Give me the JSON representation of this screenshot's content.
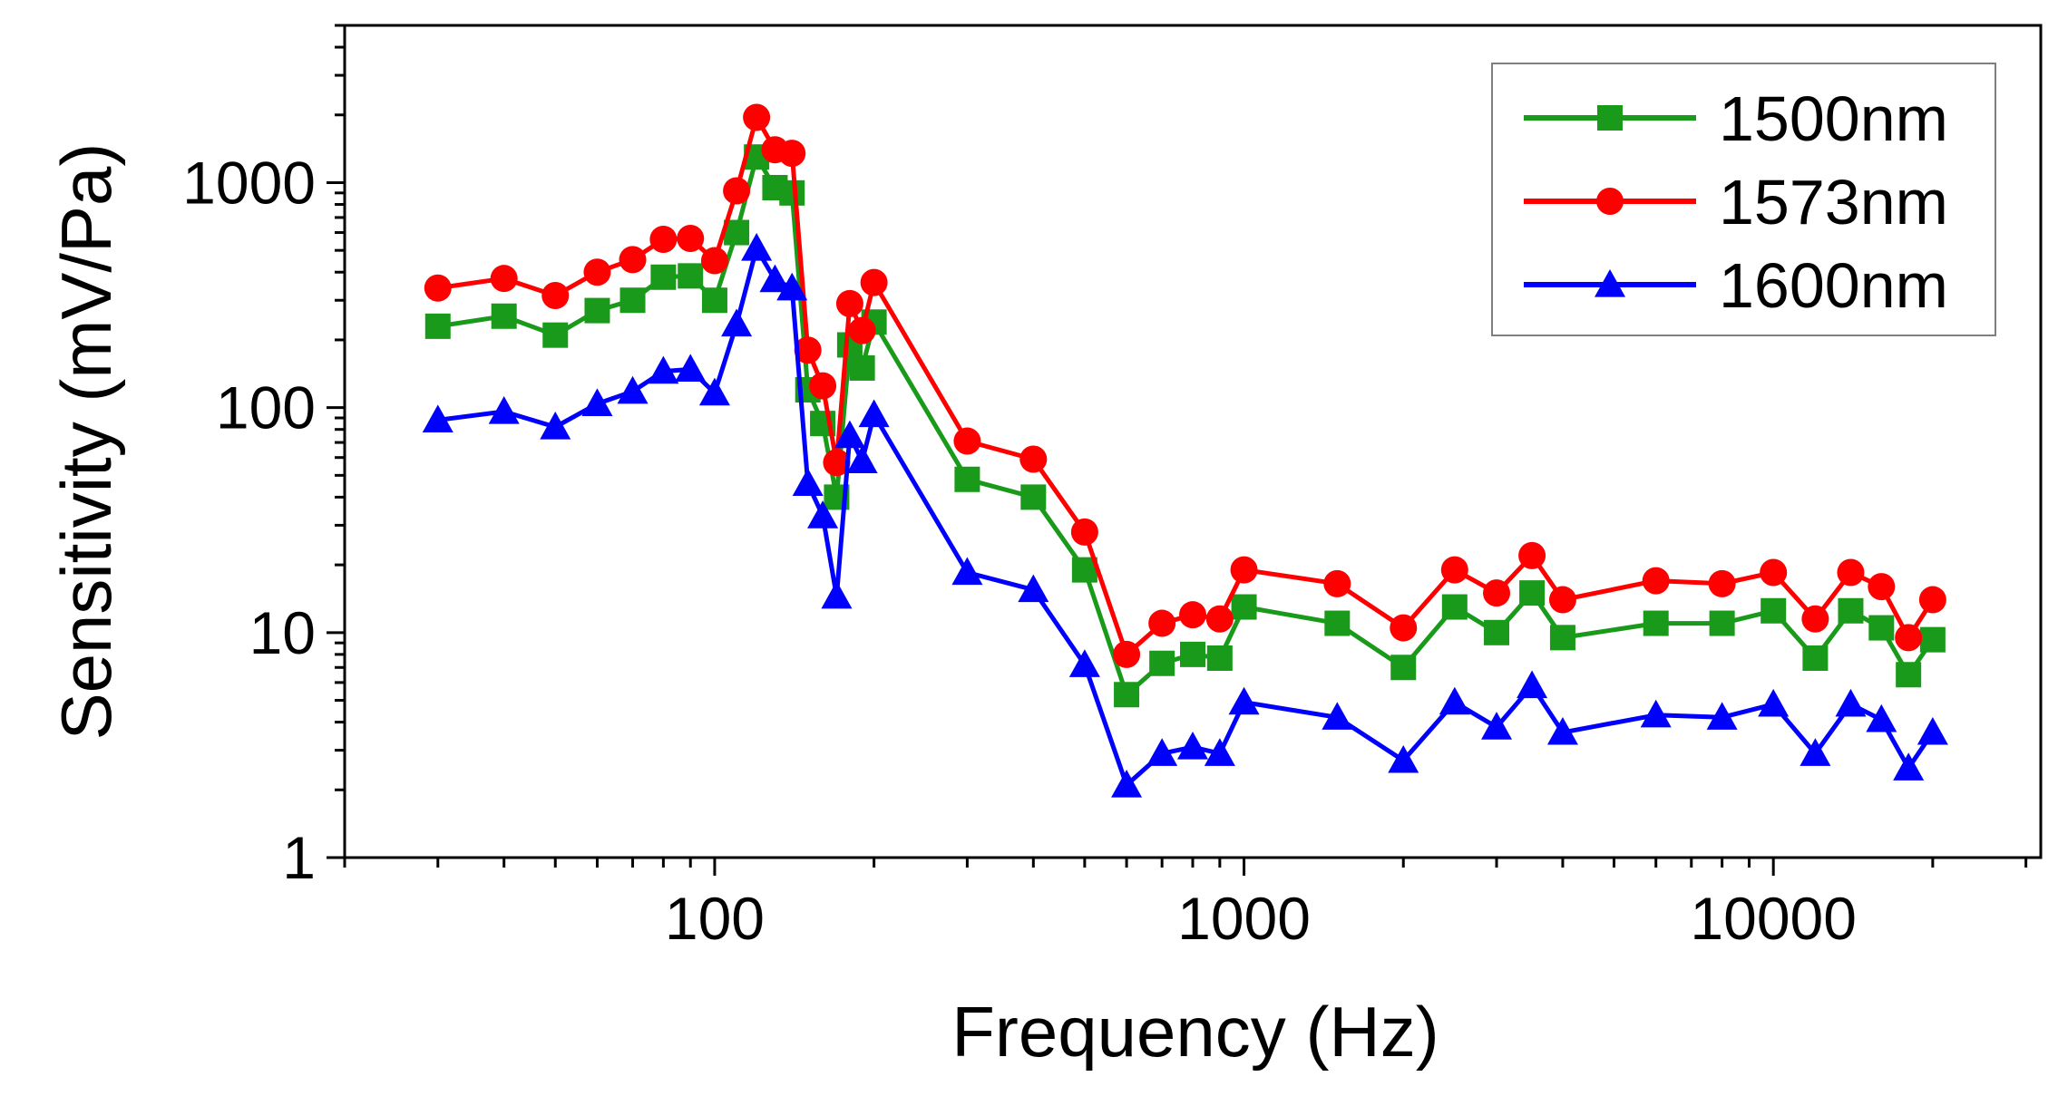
{
  "chart_data": {
    "type": "line",
    "title": "",
    "xlabel": "Frequency (Hz)",
    "ylabel": "Sensitivity (mV/Pa)",
    "x_scale": "log",
    "y_scale": "log",
    "xlim": [
      20,
      32000
    ],
    "ylim": [
      1,
      5000
    ],
    "x_ticks": [
      100,
      1000,
      10000
    ],
    "x_tick_labels": [
      "100",
      "1000",
      "10000"
    ],
    "y_ticks": [
      1,
      10,
      100,
      1000
    ],
    "y_tick_labels": [
      "1",
      "10",
      "100",
      "1000"
    ],
    "grid": false,
    "legend_position": "top-right",
    "x": [
      30,
      40,
      50,
      60,
      70,
      80,
      90,
      100,
      110,
      120,
      130,
      140,
      150,
      160,
      170,
      180,
      190,
      200,
      300,
      400,
      500,
      600,
      700,
      800,
      900,
      1000,
      1500,
      2000,
      2500,
      3000,
      3500,
      4000,
      6000,
      8000,
      10000,
      12000,
      14000,
      16000,
      18000,
      20000
    ],
    "series": [
      {
        "name": "1500nm",
        "color": "#1a9a1a",
        "marker": "square",
        "values": [
          230,
          255,
          210,
          270,
          300,
          380,
          385,
          300,
          600,
          1300,
          950,
          900,
          120,
          85,
          40,
          190,
          150,
          240,
          48,
          40,
          19,
          5.3,
          7.3,
          8,
          7.7,
          13,
          11,
          7,
          13,
          10,
          15,
          9.5,
          11,
          11,
          12.5,
          7.7,
          12.5,
          10.5,
          6.5,
          9.3
        ]
      },
      {
        "name": "1573nm",
        "color": "#ff0000",
        "marker": "circle",
        "values": [
          340,
          375,
          315,
          400,
          455,
          560,
          565,
          450,
          920,
          1950,
          1400,
          1350,
          180,
          125,
          57,
          290,
          220,
          360,
          71,
          59,
          28,
          8,
          11,
          12,
          11.5,
          19,
          16.5,
          10.5,
          19,
          15,
          22,
          14,
          17,
          16.5,
          18.5,
          11.5,
          18.5,
          16,
          9.5,
          14
        ]
      },
      {
        "name": "1600nm",
        "color": "#0000ff",
        "marker": "triangle",
        "values": [
          88,
          96,
          82,
          104,
          118,
          145,
          148,
          116,
          235,
          510,
          370,
          340,
          46,
          33,
          14.5,
          75,
          58,
          93,
          18.5,
          15.5,
          7.2,
          2.1,
          2.9,
          3.1,
          2.9,
          4.9,
          4.2,
          2.7,
          4.9,
          3.8,
          5.8,
          3.6,
          4.3,
          4.2,
          4.8,
          2.9,
          4.8,
          4.1,
          2.5,
          3.6
        ]
      }
    ]
  }
}
